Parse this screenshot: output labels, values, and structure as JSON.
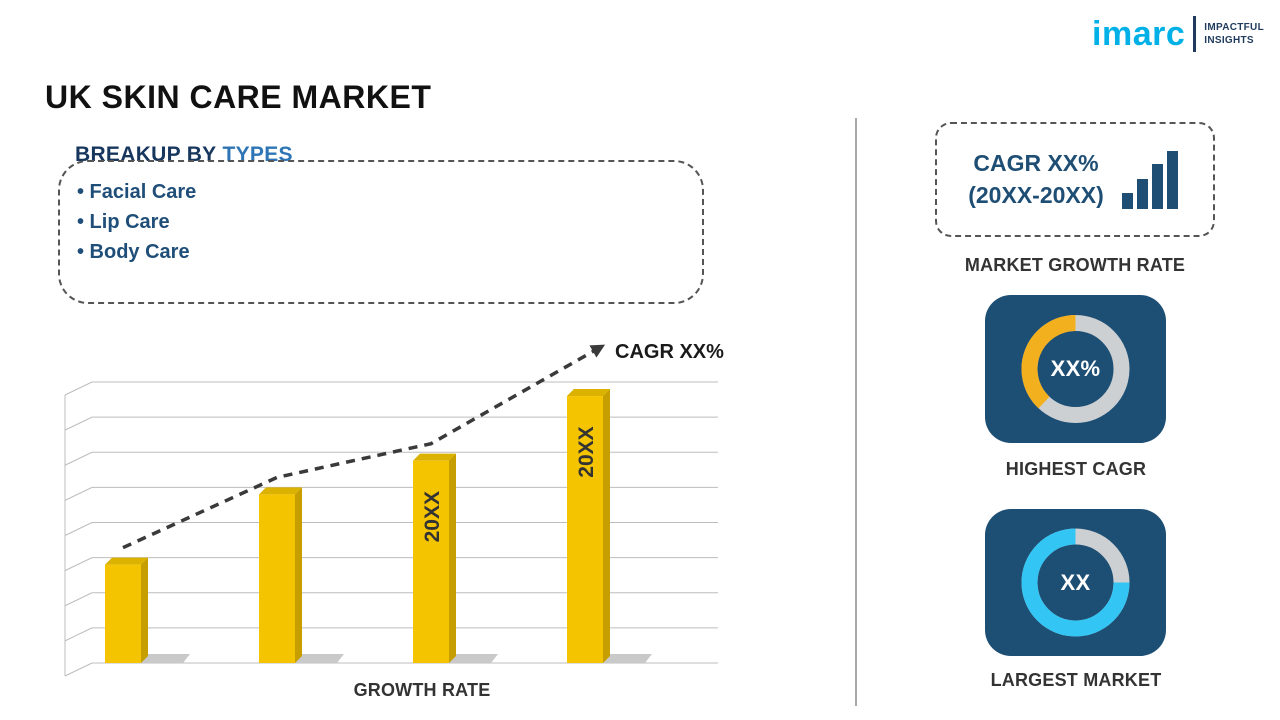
{
  "title": "UK SKIN CARE MARKET",
  "logo": {
    "brand": "imarc",
    "tagline1": "IMPACTFUL",
    "tagline2": "INSIGHTS"
  },
  "breakup": {
    "heading": "BREAKUP BY",
    "heading_accent": "TYPES",
    "bullet": "•",
    "items": [
      "Facial Care",
      "Lip Care",
      "Body Care"
    ]
  },
  "chart_data": {
    "type": "bar",
    "title": "",
    "xlabel": "GROWTH RATE",
    "ylabel": "",
    "categories": [
      "",
      "",
      "20XX",
      "20XX"
    ],
    "values": [
      35,
      60,
      72,
      95
    ],
    "ylim": [
      0,
      100
    ],
    "grid": true,
    "legend": false,
    "trend_label": "CAGR XX%",
    "trend_style": "dashed-arrow"
  },
  "right_panel": {
    "growth_box": {
      "line1": "CAGR XX%",
      "line2": "(20XX-20XX)"
    },
    "growth_caption": "MARKET GROWTH RATE",
    "highest": {
      "value": "XX%",
      "caption": "HIGHEST CAGR",
      "donut_pct": 0.38
    },
    "largest": {
      "value": "XX",
      "caption": "LARGEST MARKET",
      "donut_pct": 0.75
    }
  },
  "colors": {
    "accent_blue": "#2e75b6",
    "dark_navy": "#17365d",
    "list_navy": "#1f4e79",
    "bar_gold": "#F5C400",
    "bar_gold_side": "#C69E00",
    "bar_gold_top": "#DCB200",
    "trend": "#3a3a3a",
    "card_bg": "#1d4e74",
    "donut_gray": "#ccd0d3",
    "donut_gold": "#F2B01E",
    "donut_cyan": "#33C5F3",
    "logo_cyan": "#00B0E6",
    "caption": "#333333",
    "grid": "#bdbdbd",
    "shadow": "#c9c9c9"
  }
}
